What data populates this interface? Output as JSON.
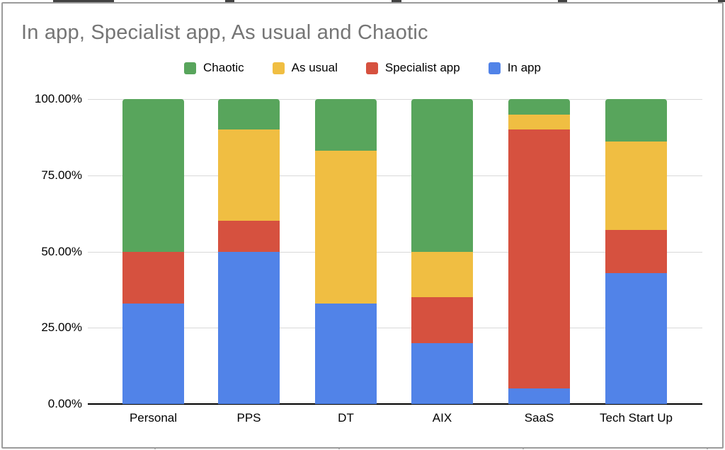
{
  "title": "In app, Specialist app, As usual and Chaotic",
  "legend": [
    {
      "label": "Chaotic",
      "color": "#58A55C"
    },
    {
      "label": "As usual",
      "color": "#F0BE42"
    },
    {
      "label": "Specialist app",
      "color": "#D6513F"
    },
    {
      "label": "In app",
      "color": "#5183E8"
    }
  ],
  "chart_data": {
    "type": "bar",
    "stacked": true,
    "percent_stacked": true,
    "title": "In app, Specialist app, As usual and Chaotic",
    "categories": [
      "Personal",
      "PPS",
      "DT",
      "AIX",
      "SaaS",
      "Tech Start Up"
    ],
    "series": [
      {
        "name": "In app",
        "color": "#5183E8",
        "values": [
          33,
          50,
          33,
          20,
          5,
          43
        ]
      },
      {
        "name": "Specialist app",
        "color": "#D6513F",
        "values": [
          17,
          10,
          0,
          15,
          85,
          14
        ]
      },
      {
        "name": "As usual",
        "color": "#F0BE42",
        "values": [
          0,
          30,
          50,
          15,
          5,
          29
        ]
      },
      {
        "name": "Chaotic",
        "color": "#58A55C",
        "values": [
          50,
          10,
          17,
          50,
          5,
          14
        ]
      }
    ],
    "y_ticks": [
      "100.00%",
      "75.00%",
      "50.00%",
      "25.00%",
      "0.00%"
    ],
    "ylim": [
      0,
      100
    ],
    "xlabel": "",
    "ylabel": "",
    "grid": true,
    "legend_position": "top",
    "legend_order": [
      "Chaotic",
      "As usual",
      "Specialist app",
      "In app"
    ],
    "colors": {
      "chaotic_green": "#58A55C",
      "as_usual_yellow": "#F0BE42",
      "specialist_red": "#D6513F",
      "in_app_blue": "#5183E8",
      "title_gray": "#757575",
      "gridline_gray": "#d9d9d9",
      "axis_black": "#000000"
    }
  }
}
